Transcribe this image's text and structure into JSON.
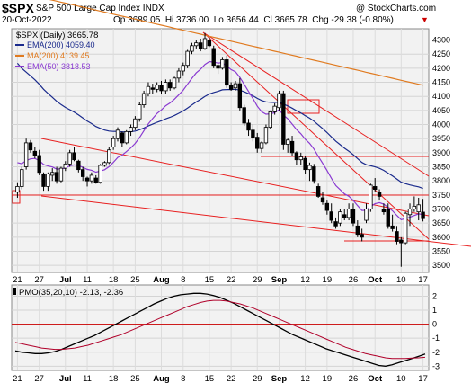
{
  "header": {
    "symbol": "$SPX",
    "name": "S&P 500 Large Cap Index",
    "exchange": "INDX",
    "watermark": "@ StockCharts.com",
    "date": "20-Oct-2022",
    "ohlc": "Op 3689.05  Hi 3736.00  Lo 3656.44  Cl 3665.78  Chg -29.38 (-0.80%)",
    "chg_arrow": "▼"
  },
  "legend": {
    "title": "$SPX (Daily) 3665.78",
    "items": [
      {
        "label": "EMA(200) 4059.40",
        "color": "#1a2a8c"
      },
      {
        "label": "MA(200) 4139.45",
        "color": "#e07a1f"
      },
      {
        "label": "EMA(50) 3818.53",
        "color": "#8a3ad1"
      }
    ]
  },
  "pmo_label": "PMO(35,20,10) -2.13, -2.36",
  "x_labels": [
    "21",
    "27",
    "Jul",
    "11",
    "18",
    "25",
    "Aug",
    "8",
    "15",
    "22",
    "29",
    "Sep",
    "12",
    "19",
    "26",
    "Oct",
    "10",
    "17"
  ],
  "price_ticks": [
    "4300",
    "4250",
    "4200",
    "4150",
    "4100",
    "4050",
    "4000",
    "3950",
    "3900",
    "3850",
    "3800",
    "3750",
    "3700",
    "3650",
    "3600",
    "3550",
    "3500"
  ],
  "pmo_ticks": [
    "2",
    "1",
    "0",
    "-1",
    "-2",
    "-3"
  ],
  "chart_data": [
    {
      "type": "candlestick",
      "title": "$SPX (Daily) 3665.78",
      "ylim": [
        3475,
        4340
      ],
      "x_labels": [
        "21",
        "27",
        "Jul",
        "11",
        "18",
        "25",
        "Aug",
        "8",
        "15",
        "22",
        "29",
        "Sep",
        "12",
        "19",
        "26",
        "Oct",
        "10",
        "17"
      ],
      "candles": [
        [
          3760,
          3795,
          3740,
          3780
        ],
        [
          3780,
          3850,
          3770,
          3840
        ],
        [
          3850,
          3950,
          3840,
          3935
        ],
        [
          3935,
          3945,
          3900,
          3910
        ],
        [
          3905,
          3920,
          3880,
          3890
        ],
        [
          3890,
          3910,
          3820,
          3830
        ],
        [
          3825,
          3830,
          3765,
          3780
        ],
        [
          3780,
          3830,
          3765,
          3825
        ],
        [
          3820,
          3845,
          3800,
          3830
        ],
        [
          3830,
          3850,
          3790,
          3800
        ],
        [
          3800,
          3850,
          3795,
          3845
        ],
        [
          3845,
          3870,
          3835,
          3860
        ],
        [
          3860,
          3910,
          3850,
          3900
        ],
        [
          3900,
          3920,
          3870,
          3875
        ],
        [
          3870,
          3875,
          3830,
          3840
        ],
        [
          3840,
          3850,
          3800,
          3815
        ],
        [
          3810,
          3815,
          3780,
          3800
        ],
        [
          3800,
          3830,
          3790,
          3820
        ],
        [
          3810,
          3820,
          3790,
          3795
        ],
        [
          3795,
          3860,
          3790,
          3855
        ],
        [
          3855,
          3870,
          3850,
          3865
        ],
        [
          3865,
          3920,
          3860,
          3910
        ],
        [
          3920,
          3960,
          3910,
          3950
        ],
        [
          3950,
          3990,
          3940,
          3980
        ],
        [
          3970,
          3975,
          3920,
          3935
        ],
        [
          3935,
          3980,
          3930,
          3975
        ],
        [
          3975,
          4000,
          3960,
          3990
        ],
        [
          3990,
          4030,
          3980,
          4020
        ],
        [
          4020,
          4080,
          4010,
          4070
        ],
        [
          4070,
          4120,
          4060,
          4110
        ],
        [
          4110,
          4150,
          4100,
          4135
        ],
        [
          4130,
          4145,
          4110,
          4125
        ],
        [
          4125,
          4150,
          4115,
          4140
        ],
        [
          4140,
          4155,
          4110,
          4120
        ],
        [
          4120,
          4160,
          4110,
          4150
        ],
        [
          4150,
          4160,
          4120,
          4130
        ],
        [
          4130,
          4170,
          4125,
          4165
        ],
        [
          4165,
          4200,
          4150,
          4190
        ],
        [
          4190,
          4220,
          4175,
          4210
        ],
        [
          4210,
          4265,
          4200,
          4260
        ],
        [
          4260,
          4290,
          4250,
          4280
        ],
        [
          4280,
          4300,
          4270,
          4290
        ],
        [
          4290,
          4305,
          4260,
          4270
        ],
        [
          4270,
          4325,
          4265,
          4305
        ],
        [
          4300,
          4310,
          4275,
          4280
        ],
        [
          4270,
          4280,
          4200,
          4210
        ],
        [
          4210,
          4220,
          4180,
          4200
        ],
        [
          4200,
          4240,
          4195,
          4230
        ],
        [
          4230,
          4245,
          4130,
          4140
        ],
        [
          4140,
          4150,
          4120,
          4125
        ],
        [
          4130,
          4155,
          4120,
          4145
        ],
        [
          4145,
          4165,
          4050,
          4060
        ],
        [
          4060,
          4070,
          3995,
          4005
        ],
        [
          4005,
          4020,
          3960,
          3980
        ],
        [
          3980,
          4000,
          3940,
          3955
        ],
        [
          3955,
          3970,
          3900,
          3915
        ],
        [
          3915,
          3940,
          3900,
          3935
        ],
        [
          3935,
          4000,
          3930,
          3990
        ],
        [
          3990,
          4050,
          3985,
          4045
        ],
        [
          4045,
          4075,
          4035,
          4065
        ],
        [
          4060,
          4120,
          4050,
          4110
        ],
        [
          4110,
          4120,
          3910,
          3930
        ],
        [
          3930,
          3950,
          3900,
          3945
        ],
        [
          3940,
          3960,
          3890,
          3900
        ],
        [
          3900,
          3905,
          3855,
          3875
        ],
        [
          3875,
          3900,
          3855,
          3885
        ],
        [
          3880,
          3890,
          3825,
          3840
        ],
        [
          3840,
          3865,
          3800,
          3855
        ],
        [
          3850,
          3860,
          3790,
          3800
        ],
        [
          3780,
          3790,
          3740,
          3745
        ],
        [
          3740,
          3760,
          3715,
          3725
        ],
        [
          3720,
          3730,
          3680,
          3695
        ],
        [
          3690,
          3720,
          3650,
          3660
        ],
        [
          3655,
          3670,
          3630,
          3640
        ],
        [
          3650,
          3700,
          3640,
          3690
        ],
        [
          3680,
          3700,
          3660,
          3670
        ],
        [
          3670,
          3720,
          3660,
          3700
        ],
        [
          3700,
          3720,
          3640,
          3650
        ],
        [
          3640,
          3660,
          3600,
          3610
        ],
        [
          3610,
          3630,
          3585,
          3600
        ],
        [
          3660,
          3720,
          3650,
          3700
        ],
        [
          3700,
          3790,
          3690,
          3785
        ],
        [
          3780,
          3810,
          3760,
          3770
        ],
        [
          3760,
          3770,
          3730,
          3745
        ],
        [
          3700,
          3720,
          3680,
          3690
        ],
        [
          3700,
          3720,
          3630,
          3640
        ],
        [
          3640,
          3680,
          3620,
          3630
        ],
        [
          3620,
          3640,
          3575,
          3585
        ],
        [
          3590,
          3600,
          3495,
          3580
        ],
        [
          3580,
          3690,
          3575,
          3685
        ],
        [
          3680,
          3720,
          3640,
          3700
        ],
        [
          3700,
          3745,
          3690,
          3710
        ],
        [
          3690,
          3740,
          3660,
          3715
        ],
        [
          3689,
          3736,
          3656,
          3666
        ]
      ],
      "indicators": [
        {
          "name": "EMA(200)",
          "last": 4059.4
        },
        {
          "name": "MA(200)",
          "last": 4139.45
        },
        {
          "name": "EMA(50)",
          "last": 3818.53
        }
      ]
    },
    {
      "type": "line",
      "title": "PMO(35,20,10) -2.13, -2.36",
      "ylim": [
        -3.3,
        2.8
      ],
      "series": [
        {
          "name": "PMO",
          "values": [
            -1.9,
            -2.0,
            -2.05,
            -2.1,
            -2.1,
            -2.05,
            -1.95,
            -1.8,
            -1.6,
            -1.4,
            -1.2,
            -1.0,
            -0.8,
            -0.55,
            -0.3,
            -0.05,
            0.2,
            0.45,
            0.7,
            0.95,
            1.2,
            1.45,
            1.65,
            1.85,
            2.0,
            2.1,
            2.15,
            2.2,
            2.2,
            2.15,
            2.05,
            1.9,
            1.7,
            1.5,
            1.25,
            1.0,
            0.75,
            0.5,
            0.25,
            0.0,
            -0.25,
            -0.5,
            -0.75,
            -0.95,
            -1.15,
            -1.35,
            -1.55,
            -1.75,
            -1.9,
            -2.05,
            -2.2,
            -2.35,
            -2.5,
            -2.65,
            -2.8,
            -2.95,
            -3.0,
            -2.9,
            -2.75,
            -2.6,
            -2.45,
            -2.3,
            -2.13
          ]
        },
        {
          "name": "Signal",
          "values": [
            -1.3,
            -1.4,
            -1.5,
            -1.6,
            -1.7,
            -1.75,
            -1.8,
            -1.8,
            -1.75,
            -1.7,
            -1.6,
            -1.5,
            -1.35,
            -1.2,
            -1.05,
            -0.9,
            -0.75,
            -0.55,
            -0.35,
            -0.15,
            0.05,
            0.25,
            0.45,
            0.65,
            0.85,
            1.05,
            1.25,
            1.4,
            1.55,
            1.65,
            1.7,
            1.7,
            1.65,
            1.55,
            1.45,
            1.3,
            1.15,
            0.95,
            0.75,
            0.55,
            0.35,
            0.15,
            -0.05,
            -0.25,
            -0.45,
            -0.65,
            -0.85,
            -1.05,
            -1.25,
            -1.45,
            -1.65,
            -1.8,
            -1.95,
            -2.1,
            -2.2,
            -2.3,
            -2.4,
            -2.45,
            -2.45,
            -2.45,
            -2.42,
            -2.4,
            -2.36
          ]
        }
      ]
    }
  ]
}
